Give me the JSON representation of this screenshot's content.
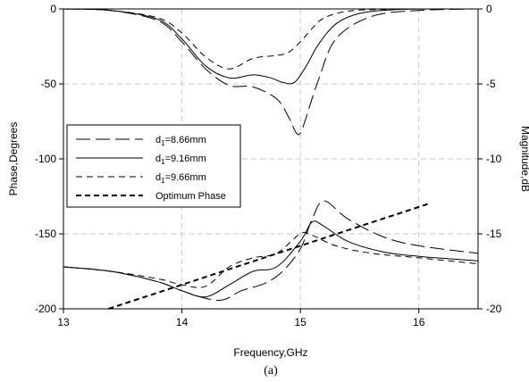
{
  "chart_data": {
    "type": "line",
    "xlabel": "Frequency,GHz",
    "ylabel_left": "Phase,Degrees",
    "ylabel_right": "Magnitude,dB",
    "caption": "(a)",
    "xlim": [
      13,
      16.5
    ],
    "ylim_left": [
      -200,
      0
    ],
    "ylim_right": [
      -20,
      0
    ],
    "x_ticks": [
      13,
      14,
      15,
      16
    ],
    "y_ticks_left": [
      0,
      -50,
      -100,
      -150,
      -200
    ],
    "y_ticks_right": [
      0,
      -5,
      -10,
      -15,
      -20
    ],
    "grid": true,
    "legend_position": "center-left",
    "legend": [
      {
        "label_main": "d",
        "label_sub": "1",
        "label_rest": "=8.66mm",
        "style": "long-dash"
      },
      {
        "label_main": "d",
        "label_sub": "1",
        "label_rest": "=9.16mm",
        "style": "solid"
      },
      {
        "label_main": "d",
        "label_sub": "1",
        "label_rest": "=9.66mm",
        "style": "short-dash"
      },
      {
        "label_main": "",
        "label_sub": "",
        "label_rest": "Optimum Phase",
        "style": "bold-dash"
      }
    ],
    "series": [
      {
        "name": "d1=8.66mm magnitude",
        "axis": "right",
        "style": "long-dash",
        "x": [
          13.0,
          13.4,
          13.8,
          14.0,
          14.2,
          14.4,
          14.6,
          14.8,
          14.9,
          14.96,
          15.0,
          15.05,
          15.15,
          15.3,
          15.6,
          16.0,
          16.5
        ],
        "y": [
          0,
          -0.1,
          -0.8,
          -2.2,
          -4.0,
          -5.1,
          -5.2,
          -6.0,
          -7.2,
          -8.2,
          -8.3,
          -7.2,
          -4.8,
          -2.0,
          -0.5,
          -0.1,
          0
        ]
      },
      {
        "name": "d1=9.16mm magnitude",
        "axis": "right",
        "style": "solid",
        "x": [
          13.0,
          13.4,
          13.8,
          14.0,
          14.2,
          14.4,
          14.6,
          14.75,
          14.85,
          14.95,
          15.05,
          15.15,
          15.3,
          15.5,
          15.8,
          16.2,
          16.5
        ],
        "y": [
          0,
          -0.1,
          -0.7,
          -2.0,
          -3.8,
          -4.6,
          -4.4,
          -4.6,
          -4.9,
          -4.9,
          -3.8,
          -2.4,
          -1.0,
          -0.3,
          -0.05,
          0,
          0
        ]
      },
      {
        "name": "d1=9.66mm magnitude",
        "axis": "right",
        "style": "short-dash",
        "x": [
          13.0,
          13.4,
          13.8,
          14.0,
          14.2,
          14.4,
          14.6,
          14.8,
          14.9,
          15.0,
          15.1,
          15.2,
          15.4,
          15.7,
          16.0,
          16.5
        ],
        "y": [
          0,
          -0.1,
          -0.6,
          -1.6,
          -3.2,
          -4.0,
          -3.3,
          -3.1,
          -2.9,
          -2.2,
          -1.3,
          -0.6,
          -0.15,
          -0.03,
          0,
          0
        ]
      },
      {
        "name": "d1=8.66mm phase",
        "axis": "left",
        "style": "long-dash",
        "x": [
          13.0,
          13.4,
          13.8,
          14.0,
          14.2,
          14.35,
          14.5,
          14.7,
          14.85,
          15.0,
          15.1,
          15.2,
          15.4,
          15.7,
          16.0,
          16.5
        ],
        "y": [
          -172,
          -175,
          -182,
          -188,
          -193,
          -194,
          -188,
          -183,
          -175,
          -160,
          -140,
          -128,
          -140,
          -152,
          -158,
          -163
        ]
      },
      {
        "name": "d1=9.16mm phase",
        "axis": "left",
        "style": "solid",
        "x": [
          13.0,
          13.4,
          13.8,
          14.0,
          14.2,
          14.4,
          14.6,
          14.8,
          15.0,
          15.1,
          15.2,
          15.4,
          15.7,
          16.0,
          16.5
        ],
        "y": [
          -172,
          -175,
          -182,
          -188,
          -192,
          -184,
          -175,
          -172,
          -155,
          -142,
          -145,
          -155,
          -162,
          -165,
          -168
        ]
      },
      {
        "name": "d1=9.66mm phase",
        "axis": "left",
        "style": "short-dash",
        "x": [
          13.0,
          13.4,
          13.8,
          14.0,
          14.2,
          14.4,
          14.6,
          14.8,
          15.0,
          15.1,
          15.3,
          15.6,
          16.0,
          16.5
        ],
        "y": [
          -172,
          -175,
          -180,
          -184,
          -185,
          -172,
          -166,
          -163,
          -150,
          -151,
          -158,
          -163,
          -166,
          -170
        ]
      },
      {
        "name": "Optimum Phase",
        "axis": "left",
        "style": "bold-dash",
        "x": [
          13.38,
          16.08
        ],
        "y": [
          -200,
          -130
        ]
      }
    ]
  }
}
